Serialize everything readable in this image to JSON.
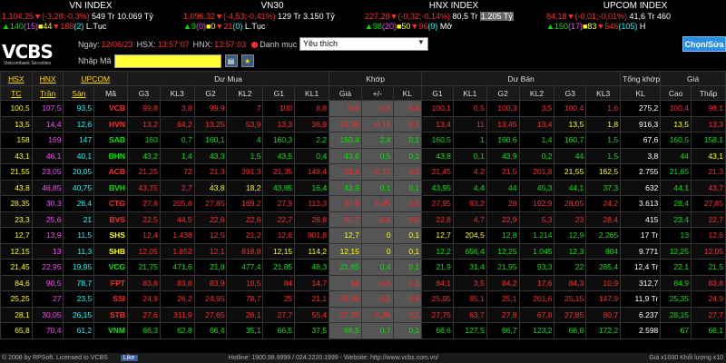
{
  "indices": [
    {
      "name": "VN INDEX",
      "value": "1.104,25",
      "change": "(-3,28;-0,3%)",
      "volume": "549 Tr",
      "amount": "10.069 Tỷ",
      "up": "140",
      "ceiling": "15",
      "ref": "44",
      "down": "188",
      "floor": "2",
      "status": "L.Tục"
    },
    {
      "name": "VN30",
      "value": "1.096,32",
      "change": "(-4,53;-0,41%)",
      "volume": "129 Tr",
      "amount": "3.150 Tỷ",
      "up": "9",
      "ceiling": "0",
      "ref": "0",
      "down": "21",
      "floor": "0",
      "status": "L.Tục"
    },
    {
      "name": "HNX INDEX",
      "value": "227,28",
      "change": "(-0,32;-0,14%)",
      "volume": "80,5 Tr",
      "amount": "1.205 Tỷ",
      "up": "98",
      "ceiling": "20",
      "ref": "50",
      "down": "96",
      "floor": "9",
      "status": "Mở"
    },
    {
      "name": "UPCOM INDEX",
      "value": "84,18",
      "change": "(-0,01;-0,01%)",
      "volume": "41,6 Tr",
      "amount": "460",
      "up": "150",
      "ceiling": "17",
      "ref": "83",
      "down": "546",
      "floor": "105",
      "status": "H"
    }
  ],
  "toolbar": {
    "logo": "VCBS",
    "logo_sub": "Vietcombank Securities",
    "date_label": "Ngày:",
    "date": "12/06/23",
    "hsx_label": "HSX:",
    "hsx_time": "13:57:07",
    "hnx_label": "HNX:",
    "hnx_time": "13:57:03",
    "dot_label": "Danh mục",
    "watchlist": "Yêu thích",
    "ma_label": "Nhập Mã",
    "ma_value": "",
    "chonsan_label": "Chọn/Sửa"
  },
  "table": {
    "top_headers": [
      "HSX",
      "HNX",
      "UPCOM",
      "Dư Mua",
      "Khớp",
      "Dư Bán",
      "Tổng khớp",
      "Giá"
    ],
    "sub_headers": [
      "TC",
      "Trần",
      "Sàn",
      "Mã",
      "G3",
      "KL3",
      "G2",
      "KL2",
      "G1",
      "KL1",
      "Giá",
      "+/-",
      "KL",
      "G1",
      "KL1",
      "G2",
      "KL2",
      "G3",
      "KL3",
      "KL",
      "Cao",
      "Thấp"
    ],
    "rows": [
      [
        "100,5",
        "107,5",
        "93,5",
        "VCB",
        "99,8",
        "3,8",
        "99,9",
        "7",
        "100",
        "8,8",
        "100",
        "-0,5",
        "0,4",
        "100,1",
        "0,5",
        "100,3",
        "3,5",
        "100,4",
        "1,6",
        "275,2",
        "100,4",
        "98,1"
      ],
      [
        "13,5",
        "14,4",
        "12,6",
        "HVN",
        "13,2",
        "64,2",
        "13,25",
        "53,9",
        "13,3",
        "36,9",
        "13,35",
        "-0,15",
        "0,1",
        "13,4",
        "11",
        "13,45",
        "13,4",
        "13,5",
        "1,8",
        "916,3",
        "13,5",
        "13,3"
      ],
      [
        "158",
        "169",
        "147",
        "SAB",
        "160",
        "0,7",
        "160,1",
        "4",
        "160,3",
        "2,2",
        "160,4",
        "2,4",
        "0,1",
        "160,5",
        "1",
        "160,6",
        "1,4",
        "160,7",
        "1,5",
        "67,6",
        "160,5",
        "158,1"
      ],
      [
        "43,1",
        "46,1",
        "40,1",
        "BHN",
        "43,2",
        "1,4",
        "43,3",
        "1,5",
        "43,5",
        "0,4",
        "43,6",
        "0,5",
        "0,1",
        "43,8",
        "0,1",
        "43,9",
        "0,2",
        "44",
        "1,5",
        "3,8",
        "44",
        "43,1"
      ],
      [
        "21,55",
        "23,05",
        "20,05",
        "ACB",
        "21,25",
        "72",
        "21,3",
        "391,3",
        "21,35",
        "148,4",
        "21,4",
        "-0,15",
        "0,3",
        "21,45",
        "4,2",
        "21,5",
        "201,8",
        "21,55",
        "162,5",
        "2.755",
        "21,65",
        "21,3"
      ],
      [
        "43,8",
        "46,85",
        "40,75",
        "BVH",
        "43,75",
        "2,7",
        "43,8",
        "18,2",
        "43,85",
        "16,4",
        "43,9",
        "0,1",
        "0,1",
        "43,95",
        "4,4",
        "44",
        "45,3",
        "44,1",
        "37,3",
        "632",
        "44,1",
        "43,7"
      ],
      [
        "28,35",
        "30,3",
        "26,4",
        "CTG",
        "27,8",
        "205,8",
        "27,85",
        "169,2",
        "27,9",
        "113,3",
        "27,9",
        "-0,45",
        "3,3",
        "27,95",
        "93,2",
        "28",
        "192,9",
        "28,05",
        "24,2",
        "3.613",
        "28,4",
        "27,85"
      ],
      [
        "23,3",
        "25,6",
        "21",
        "BVS",
        "22,5",
        "44,5",
        "22,6",
        "22,6",
        "22,7",
        "26,8",
        "22,7",
        "-0,6",
        "0,5",
        "22,8",
        "4,7",
        "22,9",
        "5,3",
        "23",
        "28,4",
        "415",
        "23,4",
        "22,7"
      ],
      [
        "12,7",
        "13,9",
        "11,5",
        "SHS",
        "12,4",
        "1.438",
        "12,5",
        "21,2",
        "12,6",
        "901,8",
        "12,7",
        "0",
        "0,1",
        "12,7",
        "204,5",
        "12,8",
        "1.214",
        "12,9",
        "2.265",
        "17 Tr",
        "13",
        "12,6"
      ],
      [
        "12,15",
        "13",
        "11,3",
        "SHB",
        "12,05",
        "1.852",
        "12,1",
        "818,8",
        "12,15",
        "114,2",
        "12,15",
        "0",
        "0,1",
        "12,2",
        "656,4",
        "12,25",
        "1.045",
        "12,3",
        "804",
        "9.771",
        "12,25",
        "12,05"
      ],
      [
        "21,45",
        "22,95",
        "19,95",
        "VCG",
        "21,75",
        "471,6",
        "21,8",
        "477,4",
        "21,85",
        "48,3",
        "21,85",
        "0,4",
        "0,1",
        "21,9",
        "31,4",
        "21,95",
        "93,3",
        "22",
        "285,4",
        "12,4 Tr",
        "22,1",
        "21,5"
      ],
      [
        "84,6",
        "90,5",
        "78,7",
        "FPT",
        "83,8",
        "83,8",
        "83,9",
        "10,5",
        "84",
        "14,7",
        "84",
        "-0,6",
        "0,1",
        "84,1",
        "3,5",
        "84,2",
        "17,6",
        "84,3",
        "10,9",
        "312,7",
        "84,9",
        "83,8"
      ],
      [
        "25,25",
        "27",
        "23,5",
        "SSI",
        "24,9",
        "26,2",
        "24,95",
        "78,7",
        "25",
        "21,1",
        "25,05",
        "-0,2",
        "0,5",
        "25,05",
        "95,1",
        "25,1",
        "201,6",
        "25,15",
        "147,9",
        "11,9 Tr",
        "25,35",
        "24,9"
      ],
      [
        "28,1",
        "30,05",
        "26,15",
        "STB",
        "27,6",
        "311,9",
        "27,65",
        "28,1",
        "27,7",
        "55,4",
        "27,75",
        "-0,35",
        "0,1",
        "27,75",
        "63,7",
        "27,8",
        "67,8",
        "27,85",
        "80,7",
        "6.237",
        "28,15",
        "27,7"
      ],
      [
        "65,8",
        "70,4",
        "61,2",
        "VNM",
        "66,3",
        "62,8",
        "66,4",
        "35,1",
        "66,5",
        "37,5",
        "66,5",
        "0,7",
        "0,1",
        "66,6",
        "127,5",
        "66,7",
        "123,2",
        "66,8",
        "172,2",
        "2.598",
        "67",
        "66,1"
      ]
    ],
    "row_colors": {
      "VCB": "red",
      "HVN": "red",
      "SAB": "green",
      "BHN": "green",
      "ACB": "red",
      "BVH": "green",
      "CTG": "red",
      "BVS": "red",
      "SHS": "yellow",
      "SHB": "yellow",
      "VCG": "green",
      "FPT": "red",
      "SSI": "red",
      "STB": "red",
      "VNM": "green"
    }
  },
  "footer": {
    "copyright": "© 2008 by RPSoft. Licensed to VCBS",
    "like": "Like",
    "hotline": "Hotline: 1900.98.9999 / 024.2220.1999 - Website: http://www.vcbs.com.vn/",
    "unit": "Giá x1000 Khối lượng x10"
  },
  "colors": {
    "up": "#00e600",
    "down": "#ff2b2b",
    "ref": "#ffff00",
    "ceiling": "#ff44ff",
    "floor": "#00ffff"
  }
}
